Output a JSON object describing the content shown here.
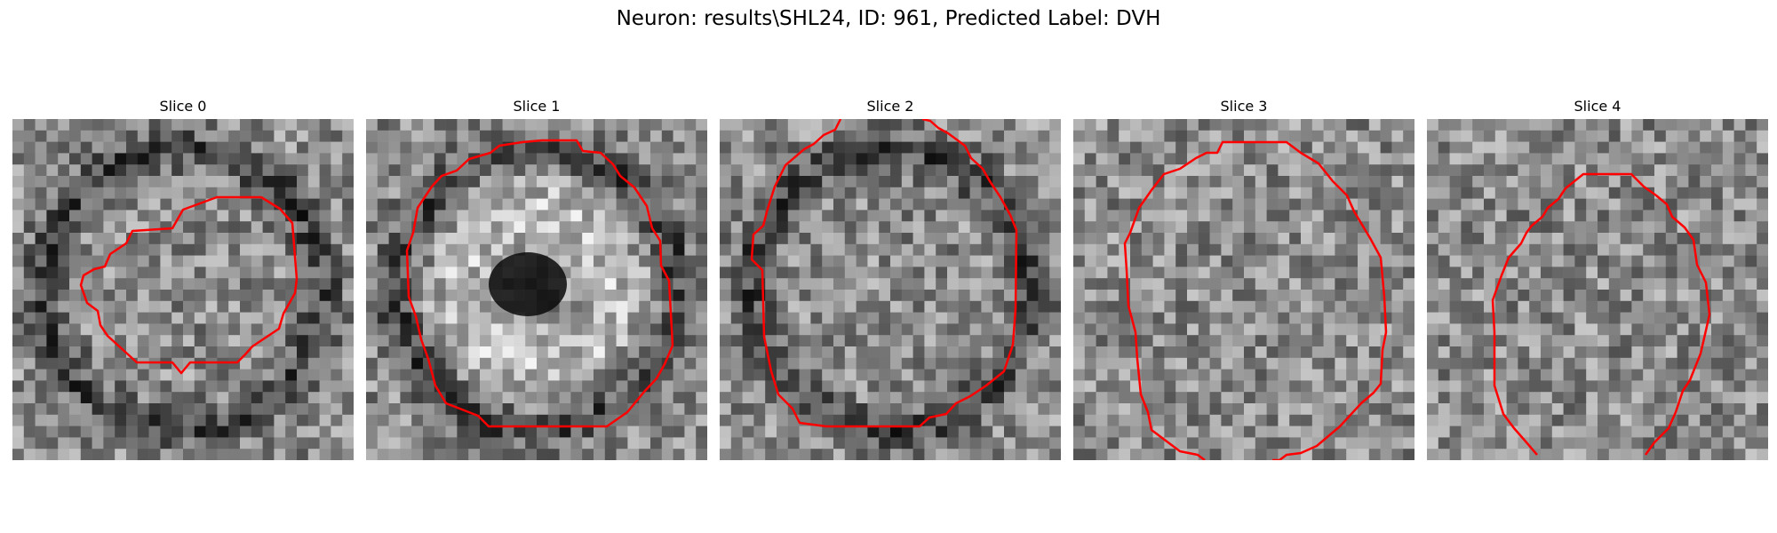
{
  "figure": {
    "title": "Neuron: results\\SHL24, ID: 961, Predicted Label: DVH",
    "contour_color": "#ff0000",
    "grid_size": 30
  },
  "panels": [
    {
      "label": "Slice 0"
    },
    {
      "label": "Slice 1"
    },
    {
      "label": "Slice 2"
    },
    {
      "label": "Slice 3"
    },
    {
      "label": "Slice 4"
    }
  ]
}
